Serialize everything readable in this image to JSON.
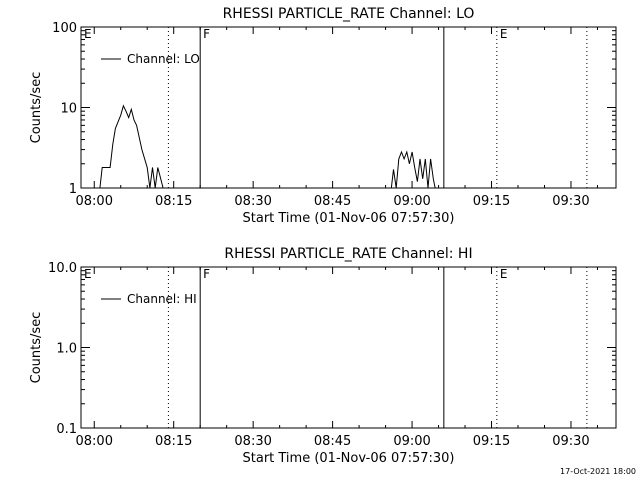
{
  "footer_timestamp": "17-Oct-2021 18:00",
  "chart_data": [
    {
      "type": "line",
      "title": "RHESSI PARTICLE_RATE Channel: LO",
      "xlabel": "Start Time (01-Nov-06 07:57:30)",
      "ylabel": "Counts/sec",
      "yscale": "log",
      "ylim": [
        1,
        100
      ],
      "xlim": [
        "07:57:30",
        "09:38:30"
      ],
      "x_tick_labels": [
        "08:00",
        "08:15",
        "08:30",
        "08:45",
        "09:00",
        "09:15",
        "09:30"
      ],
      "y_tick_labels": [
        "1",
        "10",
        "100"
      ],
      "y_tick_values": [
        1,
        10,
        100
      ],
      "legend": {
        "label": "Channel: LO",
        "position": "top-left"
      },
      "markers": [
        {
          "label": "E",
          "time": "07:57:30",
          "style": "solid"
        },
        {
          "label": "",
          "time": "08:14",
          "style": "dotted"
        },
        {
          "label": "F",
          "time": "08:20",
          "style": "solid"
        },
        {
          "label": "",
          "time": "09:06",
          "style": "solid"
        },
        {
          "label": "E",
          "time": "09:16",
          "style": "dotted"
        },
        {
          "label": "",
          "time": "09:33",
          "style": "dotted"
        }
      ],
      "series": [
        {
          "segments": [
            {
              "x": [
                "08:01",
                "08:01.5",
                "08:03",
                "08:03.5",
                "08:04",
                "08:05",
                "08:05.5",
                "08:06",
                "08:06.5",
                "08:07",
                "08:07.5",
                "08:08",
                "08:09",
                "08:10",
                "08:10.5",
                "08:11",
                "08:11.5",
                "08:12",
                "08:13",
                "08:13.5"
              ],
              "y": [
                0.9,
                1.8,
                1.8,
                3.5,
                5.5,
                8,
                10.5,
                9,
                7.5,
                9.5,
                7,
                6,
                3,
                1.8,
                1,
                1.8,
                1,
                1.8,
                1,
                0.9
              ]
            },
            {
              "x": [
                "08:56",
                "08:56.5",
                "08:57",
                "08:57.5",
                "08:58",
                "08:58.5",
                "08:59",
                "08:59.5",
                "09:00",
                "09:00.5",
                "09:01",
                "09:01.5",
                "09:02",
                "09:02.5",
                "09:03",
                "09:03.5",
                "09:04",
                "09:04.5",
                "09:05"
              ],
              "y": [
                0.9,
                1.7,
                1,
                2.3,
                2.8,
                2.3,
                2.8,
                2,
                2.8,
                1.8,
                1.2,
                2.3,
                1.3,
                2.3,
                1,
                2.3,
                1.3,
                0.9,
                1
              ]
            }
          ]
        }
      ]
    },
    {
      "type": "line",
      "title": "RHESSI PARTICLE_RATE Channel: HI",
      "xlabel": "Start Time (01-Nov-06 07:57:30)",
      "ylabel": "Counts/sec",
      "yscale": "log",
      "ylim": [
        0.1,
        10
      ],
      "xlim": [
        "07:57:30",
        "09:38:30"
      ],
      "x_tick_labels": [
        "08:00",
        "08:15",
        "08:30",
        "08:45",
        "09:00",
        "09:15",
        "09:30"
      ],
      "y_tick_labels": [
        "0.1",
        "1.0",
        "10.0"
      ],
      "y_tick_values": [
        0.1,
        1,
        10
      ],
      "legend": {
        "label": "Channel: HI",
        "position": "top-left"
      },
      "markers": [
        {
          "label": "E",
          "time": "07:57:30",
          "style": "solid"
        },
        {
          "label": "",
          "time": "08:14",
          "style": "dotted"
        },
        {
          "label": "F",
          "time": "08:20",
          "style": "solid"
        },
        {
          "label": "",
          "time": "09:06",
          "style": "solid"
        },
        {
          "label": "E",
          "time": "09:16",
          "style": "dotted"
        },
        {
          "label": "",
          "time": "09:33",
          "style": "dotted"
        }
      ],
      "series": [
        {
          "segments": []
        }
      ]
    }
  ]
}
